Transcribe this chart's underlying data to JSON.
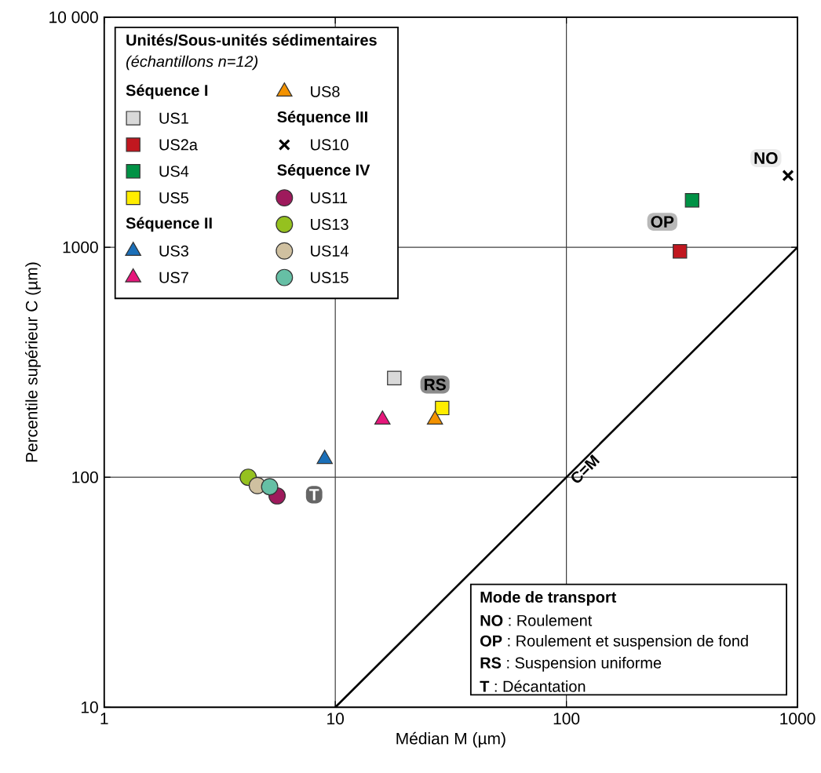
{
  "chart_data": {
    "type": "scatter",
    "xlabel": "Médian M (µm)",
    "ylabel": "Percentile supérieur C (µm)",
    "legend_title": "Unités/Sous-unités sédimentaires",
    "log": "xy",
    "grid": true,
    "legend": "top left",
    "xlim": [
      1,
      1000
    ],
    "ylim": [
      10,
      10000
    ],
    "xticks": [
      1,
      10,
      100,
      1000
    ],
    "yticks": [
      10,
      100,
      1000,
      {
        "value": 10000,
        "label": "10 000"
      }
    ],
    "series": [
      {
        "name": "US1",
        "color": "#d9d9d9",
        "marker": "square",
        "x": [
          18
        ],
        "values": [
          270
        ]
      },
      {
        "name": "US2a",
        "color": "#c1171f",
        "marker": "square",
        "x": [
          310
        ],
        "values": [
          960
        ]
      },
      {
        "name": "US4",
        "color": "#009245",
        "marker": "square",
        "x": [
          350
        ],
        "values": [
          1600
        ]
      },
      {
        "name": "US5",
        "color": "#ffed00",
        "marker": "square",
        "x": [
          29
        ],
        "values": [
          200
        ]
      },
      {
        "name": "US3",
        "color": "#1b6fb8",
        "marker": "triangle",
        "x": [
          9
        ],
        "values": [
          120
        ]
      },
      {
        "name": "US7",
        "color": "#e6177b",
        "marker": "triangle",
        "x": [
          16
        ],
        "values": [
          178
        ]
      },
      {
        "name": "US8",
        "color": "#f39200",
        "marker": "triangle",
        "x": [
          27
        ],
        "values": [
          178
        ]
      },
      {
        "name": "US10",
        "color": "#000000",
        "marker": "cross",
        "x": [
          910
        ],
        "values": [
          2050
        ]
      },
      {
        "name": "US11",
        "color": "#9e1a5c",
        "marker": "circle",
        "x": [
          5.6
        ],
        "values": [
          83
        ]
      },
      {
        "name": "US13",
        "color": "#95c11f",
        "marker": "circle",
        "x": [
          4.2
        ],
        "values": [
          100
        ]
      },
      {
        "name": "US14",
        "color": "#cfc0a0",
        "marker": "circle",
        "x": [
          4.6
        ],
        "values": [
          92
        ]
      },
      {
        "name": "US15",
        "color": "#66bfa5",
        "marker": "circle",
        "x": [
          5.2
        ],
        "values": [
          91
        ]
      },
      {
        "name": "C=M",
        "type": "line",
        "color": "#000000",
        "marker": "none",
        "line_style": "solid",
        "x": [
          10,
          1000
        ],
        "values": [
          10,
          1000
        ]
      }
    ],
    "annotations": [
      "(échantillons n=12)",
      "Séquence I",
      "Séquence II",
      "Séquence III",
      "Séquence IV",
      "Mode de transport",
      "**NO** : Roulement",
      "**OP** : Roulement et suspension de fond",
      "**RS** : Suspension uniforme",
      "**T** : Décantation",
      {
        "text": "NO",
        "x": 730,
        "y": 2440
      },
      {
        "text": "OP",
        "x": 260,
        "y": 1290
      },
      {
        "text": "RS",
        "x": 27,
        "y": 253
      },
      {
        "text": "T",
        "x": 8.1,
        "y": 84
      }
    ]
  }
}
